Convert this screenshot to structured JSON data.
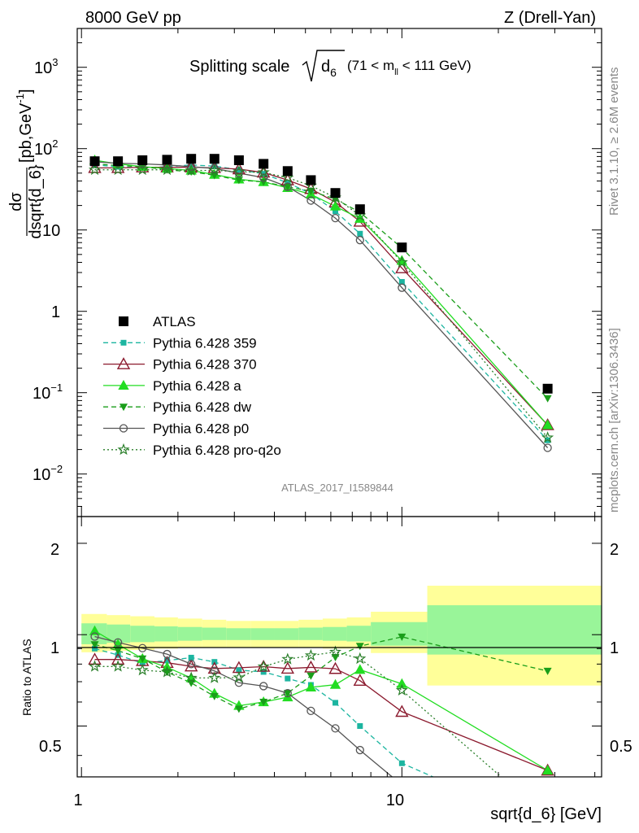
{
  "header": {
    "left": "8000 GeV pp",
    "right": "Z (Drell-Yan)"
  },
  "title": {
    "prefix": "Splitting scale",
    "sym": "d",
    "sub": "6",
    "cut": "(71 < m",
    "cut_sub": "ll",
    "cut_end": " < 111 GeV)"
  },
  "ylabel": {
    "numerator": "dσ",
    "denominator": "dsqrt{d_6}",
    "unit": "[pb,GeV",
    "unit_sup": "-1",
    "unit_end": "]"
  },
  "ratio_label": "Ratio to ATLAS",
  "xlabel": "sqrt{d_6} [GeV]",
  "side": {
    "rivet": "Rivet 3.1.10, ≥ 2.6M events",
    "mcplots": "mcplots.cern.ch [arXiv:1306.3436]"
  },
  "analysis_id": "ATLAS_2017_I1589844",
  "colors": {
    "ATLAS": "#000000",
    "p359": "#1cb5a0",
    "p370": "#8b1a2e",
    "pa": "#22dd22",
    "pdw": "#1a9e1a",
    "pp0": "#555555",
    "pq2o": "#2a7f2a",
    "band_stat": "#99f599",
    "band_syst": "#ffff99"
  },
  "legend": [
    {
      "key": "ATLAS",
      "label": "ATLAS"
    },
    {
      "key": "p359",
      "label": "Pythia 6.428 359"
    },
    {
      "key": "p370",
      "label": "Pythia 6.428 370"
    },
    {
      "key": "pa",
      "label": "Pythia 6.428 a"
    },
    {
      "key": "pdw",
      "label": "Pythia 6.428 dw"
    },
    {
      "key": "pp0",
      "label": "Pythia 6.428 p0"
    },
    {
      "key": "pq2o",
      "label": "Pythia 6.428 pro-q2o"
    }
  ],
  "chart_data": {
    "type": "line",
    "x_scale": "log",
    "y_scale": "log",
    "xlim": [
      0.97,
      42
    ],
    "ylim": [
      0.003,
      3000
    ],
    "ratio_ylim": [
      0.34,
      2.45
    ],
    "x_ticks": [
      1,
      10
    ],
    "y_ticks": [
      "10^-2",
      "10^-1",
      "1",
      "10",
      "10^2",
      "10^3"
    ],
    "ratio_ticks": [
      0.5,
      1,
      2
    ],
    "x": [
      1.1,
      1.3,
      1.55,
      1.85,
      2.2,
      2.6,
      3.1,
      3.7,
      4.4,
      5.2,
      6.2,
      7.4,
      10,
      28.5
    ],
    "bin_edges": [
      1.0,
      1.2,
      1.42,
      1.69,
      2.0,
      2.38,
      2.83,
      3.37,
      4.0,
      4.76,
      5.66,
      6.73,
      8.0,
      12.0,
      42.0
    ],
    "band_syst": [
      [
        0.875,
        1.17
      ],
      [
        0.885,
        1.16
      ],
      [
        0.89,
        1.15
      ],
      [
        0.9,
        1.14
      ],
      [
        0.905,
        1.13
      ],
      [
        0.91,
        1.12
      ],
      [
        0.91,
        1.11
      ],
      [
        0.91,
        1.11
      ],
      [
        0.91,
        1.11
      ],
      [
        0.91,
        1.12
      ],
      [
        0.9,
        1.13
      ],
      [
        0.9,
        1.14
      ],
      [
        0.87,
        1.19
      ],
      [
        0.68,
        1.45
      ]
    ],
    "band_stat": [
      [
        0.93,
        1.09
      ],
      [
        0.94,
        1.08
      ],
      [
        0.945,
        1.07
      ],
      [
        0.95,
        1.065
      ],
      [
        0.955,
        1.06
      ],
      [
        0.96,
        1.055
      ],
      [
        0.96,
        1.05
      ],
      [
        0.96,
        1.05
      ],
      [
        0.96,
        1.05
      ],
      [
        0.96,
        1.055
      ],
      [
        0.955,
        1.06
      ],
      [
        0.95,
        1.07
      ],
      [
        0.92,
        1.1
      ],
      [
        0.86,
        1.25
      ]
    ],
    "series": [
      {
        "key": "ATLAS",
        "values": [
          70,
          70,
          72,
          73,
          75,
          75,
          72,
          65,
          53,
          41,
          28.5,
          18,
          6.1,
          0.112
        ]
      },
      {
        "key": "p359",
        "values": [
          63,
          60,
          58,
          60,
          63,
          61,
          55,
          49,
          38,
          28,
          17,
          9,
          2.3,
          0.026
        ]
      },
      {
        "key": "p370",
        "values": [
          58,
          58,
          59,
          59,
          59,
          58,
          56,
          51,
          41,
          32,
          22,
          12.7,
          3.4,
          0.04
        ]
      },
      {
        "key": "pa",
        "values": [
          72,
          65,
          60,
          57,
          54,
          48,
          42,
          39,
          33,
          27.5,
          19.5,
          13.8,
          4.2,
          0.04
        ]
      },
      {
        "key": "pdw",
        "values": [
          65,
          62,
          60,
          55,
          52,
          47,
          41,
          39,
          34,
          30,
          24,
          16.5,
          6.0,
          0.085
        ]
      },
      {
        "key": "pp0",
        "values": [
          69,
          66,
          65,
          63,
          60,
          57,
          50,
          44,
          34,
          23,
          14,
          7.5,
          1.95,
          0.021
        ]
      },
      {
        "key": "pq2o",
        "values": [
          55,
          55,
          55,
          55,
          54,
          54,
          52,
          51,
          44,
          35,
          25,
          15,
          4.0,
          0.028
        ]
      }
    ]
  }
}
